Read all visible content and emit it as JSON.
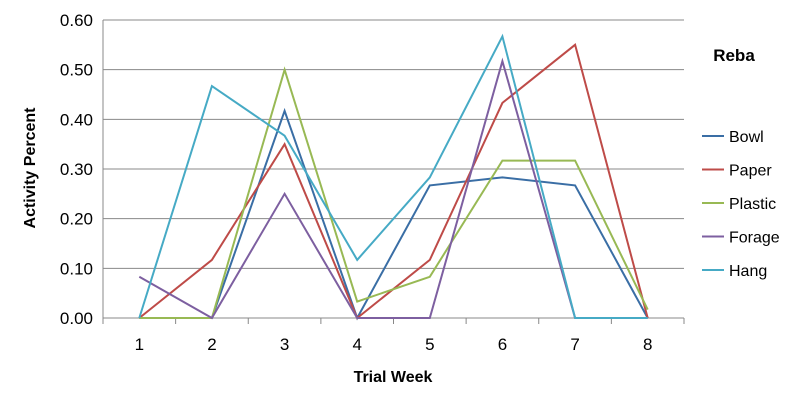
{
  "chart_data": {
    "type": "line",
    "title": "Reba",
    "xlabel": "Trial Week",
    "ylabel": "Activity Percent",
    "x": [
      "1",
      "2",
      "3",
      "4",
      "5",
      "6",
      "7",
      "8"
    ],
    "ylim": [
      0,
      0.6
    ],
    "y_ticks": [
      "0.00",
      "0.10",
      "0.20",
      "0.30",
      "0.40",
      "0.50",
      "0.60"
    ],
    "grid": true,
    "legend_position": "right",
    "series": [
      {
        "name": "Bowl",
        "color": "#3a6ea5",
        "values": [
          0,
          0,
          0.417,
          0,
          0.267,
          0.283,
          0.267,
          0
        ]
      },
      {
        "name": "Paper",
        "color": "#be4b48",
        "values": [
          0,
          0.117,
          0.35,
          0,
          0.117,
          0.433,
          0.55,
          0
        ]
      },
      {
        "name": "Plastic",
        "color": "#98b954",
        "values": [
          0,
          0,
          0.5,
          0.033,
          0.083,
          0.317,
          0.317,
          0.017
        ]
      },
      {
        "name": "Forage",
        "color": "#7d5fa0",
        "values": [
          0.083,
          0,
          0.25,
          0,
          0,
          0.517,
          0,
          0
        ]
      },
      {
        "name": "Hang",
        "color": "#46aac5",
        "values": [
          0,
          0.467,
          0.367,
          0.117,
          0.283,
          0.567,
          0,
          0
        ]
      }
    ]
  }
}
